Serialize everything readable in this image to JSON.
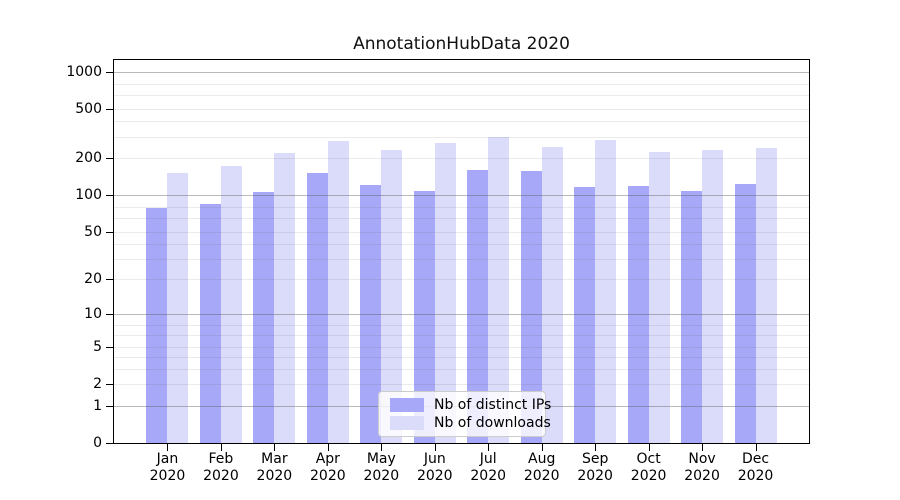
{
  "chart_data": {
    "type": "bar",
    "title": "AnnotationHubData 2020",
    "x_months": [
      "Jan",
      "Feb",
      "Mar",
      "Apr",
      "May",
      "Jun",
      "Jul",
      "Aug",
      "Sep",
      "Oct",
      "Nov",
      "Dec"
    ],
    "x_year": "2020",
    "series": [
      {
        "name": "Nb of distinct IPs",
        "color": "#a8a8f8",
        "values": [
          78,
          85,
          106,
          152,
          122,
          108,
          159,
          156,
          117,
          119,
          109,
          123
        ]
      },
      {
        "name": "Nb of downloads",
        "color": "#dbdbfa",
        "values": [
          151,
          173,
          220,
          274,
          232,
          267,
          299,
          247,
          281,
          223,
          233,
          242
        ]
      }
    ],
    "y_ticks": [
      0,
      1,
      2,
      5,
      10,
      20,
      50,
      100,
      200,
      500,
      1000
    ],
    "y_scale": "log1p",
    "ylim": [
      0,
      1070
    ],
    "grid": true,
    "legend_position": "lower center",
    "colors": {
      "bar_ips": "#a8a8f8",
      "bar_downloads": "#dbdbfa",
      "major_gridline": "#bcbcbc",
      "minor_gridline": "#e9e9e9",
      "axis": "#000000"
    }
  }
}
